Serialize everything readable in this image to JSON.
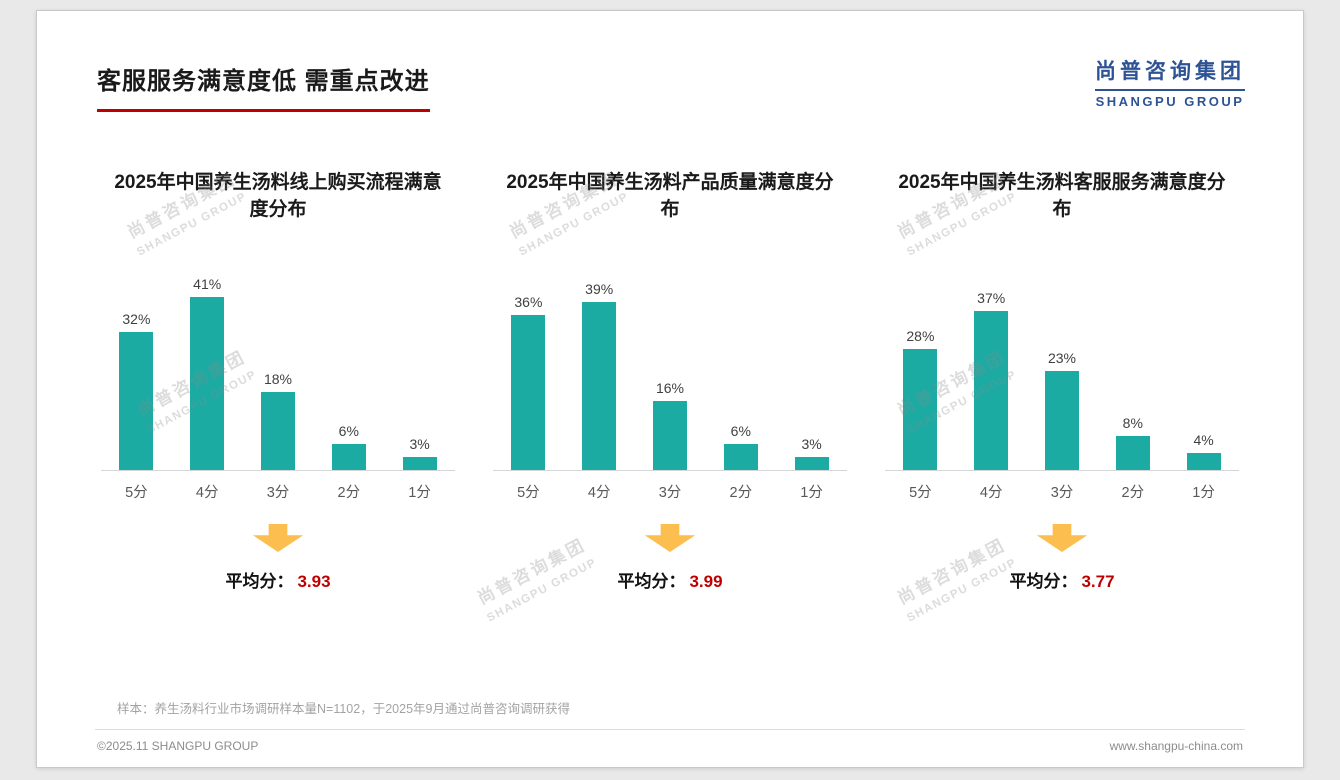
{
  "slide": {
    "title": "客服服务满意度低 需重点改进",
    "logo_cn": "尚普咨询集团",
    "logo_en": "SHANGPU GROUP",
    "watermark_line1": "尚普咨询集团",
    "watermark_line2": "SHANGPU GROUP",
    "footnote": "样本：养生汤料行业市场调研样本量N=1102，于2025年9月通过尚普咨询调研获得",
    "footer_left": "©2025.11 SHANGPU GROUP",
    "footer_right": "www.shangpu-china.com"
  },
  "colors": {
    "bar": "#1baba3",
    "accent_red": "#c00000",
    "logo_blue": "#2e5395",
    "arrow_yellow": "#fbbe4f"
  },
  "chart_data": [
    {
      "type": "bar",
      "title": "2025年中国养生汤料线上购买流程满意度分布",
      "categories": [
        "5分",
        "4分",
        "3分",
        "2分",
        "1分"
      ],
      "values": [
        32,
        41,
        18,
        6,
        3
      ],
      "value_labels": [
        "32%",
        "41%",
        "18%",
        "6%",
        "3%"
      ],
      "ylim": [
        0,
        45
      ],
      "grid": false,
      "legend": false,
      "average_label": "平均分：",
      "average": "3.93"
    },
    {
      "type": "bar",
      "title": "2025年中国养生汤料产品质量满意度分布",
      "categories": [
        "5分",
        "4分",
        "3分",
        "2分",
        "1分"
      ],
      "values": [
        36,
        39,
        16,
        6,
        3
      ],
      "value_labels": [
        "36%",
        "39%",
        "16%",
        "6%",
        "3%"
      ],
      "ylim": [
        0,
        45
      ],
      "grid": false,
      "legend": false,
      "average_label": "平均分：",
      "average": "3.99"
    },
    {
      "type": "bar",
      "title": "2025年中国养生汤料客服服务满意度分布",
      "categories": [
        "5分",
        "4分",
        "3分",
        "2分",
        "1分"
      ],
      "values": [
        28,
        37,
        23,
        8,
        4
      ],
      "value_labels": [
        "28%",
        "37%",
        "23%",
        "8%",
        "4%"
      ],
      "ylim": [
        0,
        45
      ],
      "grid": false,
      "legend": false,
      "average_label": "平均分：",
      "average": "3.77"
    }
  ]
}
